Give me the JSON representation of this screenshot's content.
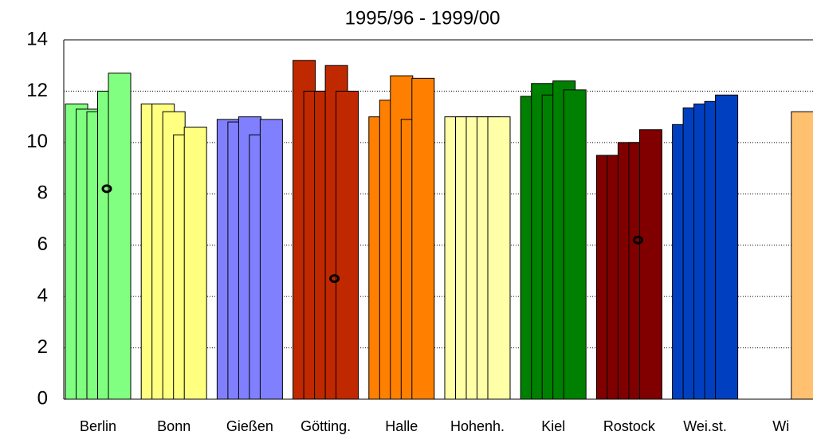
{
  "chart_data": {
    "type": "bar",
    "title": "1995/96 - 1999/00",
    "categories": [
      "Berlin",
      "Bonn",
      "Gießen",
      "Götting.",
      "Halle",
      "Hohenh.",
      "Kiel",
      "Rostock",
      "Wei.st.",
      "Wi"
    ],
    "colors": [
      "#80ff80",
      "#ffff80",
      "#8080ff",
      "#c02800",
      "#ff8000",
      "#ffffa8",
      "#008000",
      "#800000",
      "#0040c0",
      "#ffc070"
    ],
    "series": [
      {
        "values": [
          11.5,
          11.5,
          10.9,
          13.2,
          11.0,
          11.0,
          11.8,
          9.5,
          10.7,
          null
        ]
      },
      {
        "values": [
          11.3,
          11.5,
          10.8,
          12.0,
          11.65,
          11.0,
          12.3,
          9.5,
          11.35,
          null
        ]
      },
      {
        "values": [
          11.2,
          11.2,
          11.0,
          12.0,
          12.6,
          11.0,
          11.85,
          10.0,
          11.5,
          null
        ]
      },
      {
        "values": [
          12.0,
          10.3,
          10.3,
          13.0,
          10.9,
          11.0,
          12.4,
          10.0,
          11.6,
          null
        ]
      },
      {
        "values": [
          12.7,
          10.6,
          10.9,
          12.0,
          12.5,
          11.0,
          12.05,
          10.5,
          11.85,
          11.2
        ]
      }
    ],
    "circle_markers": [
      8.2,
      null,
      null,
      4.7,
      null,
      null,
      null,
      6.2,
      null,
      null
    ],
    "ylim": [
      0,
      14
    ],
    "yticks": [
      0,
      2,
      4,
      6,
      8,
      10,
      12,
      14
    ],
    "grid": true
  }
}
